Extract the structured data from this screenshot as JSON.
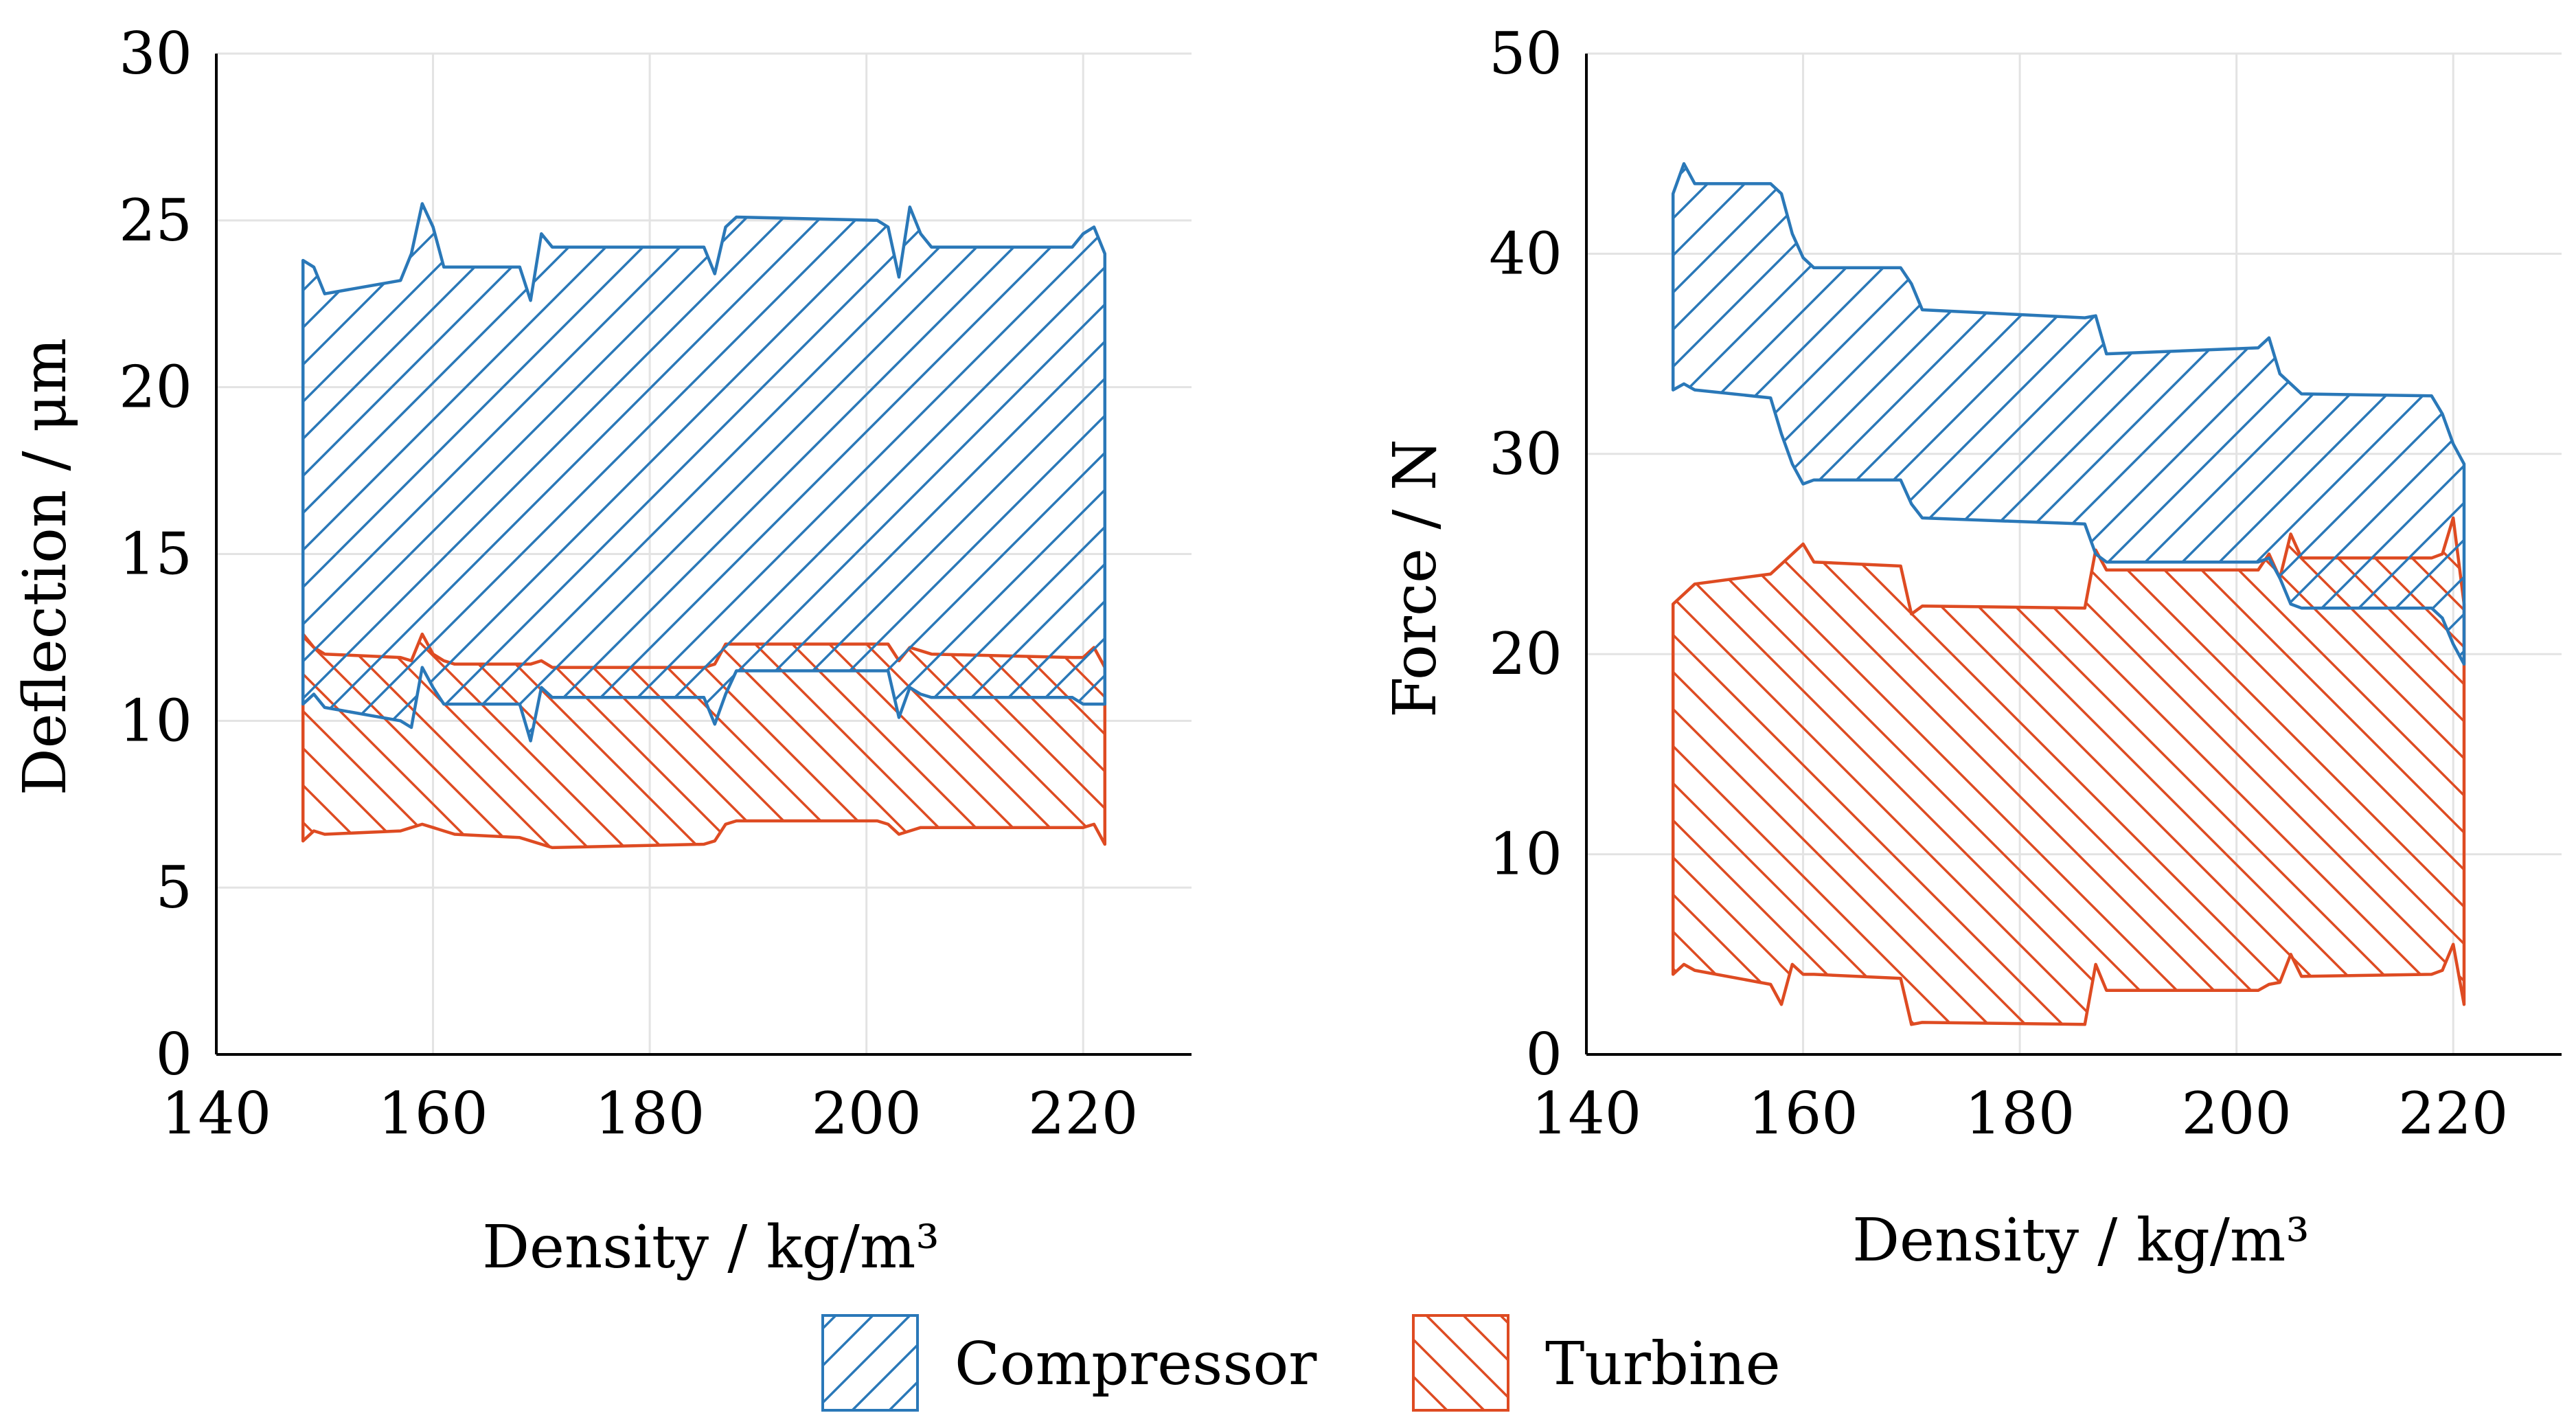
{
  "colors": {
    "compressor": "#2a78b8",
    "turbine": "#de4b22",
    "grid": "#e3e3e3"
  },
  "legend": {
    "compressor": "Compressor",
    "turbine": "Turbine"
  },
  "chart_data": [
    {
      "type": "area",
      "subplot": "left",
      "xlabel": "Density / kg/m³",
      "ylabel": "Deflection /   μm",
      "xlim": [
        140,
        230
      ],
      "ylim": [
        0,
        30
      ],
      "xticks": [
        "140",
        "160",
        "180",
        "200",
        "220"
      ],
      "yticks": [
        "0",
        "5",
        "10",
        "15",
        "20",
        "25",
        "30"
      ],
      "grid": true,
      "series": [
        {
          "name": "Compressor",
          "hatch": "diagonal-up",
          "x": [
            148,
            149,
            150,
            157,
            158,
            159,
            160,
            161,
            162,
            168,
            169,
            170,
            171,
            185,
            186,
            187,
            188,
            201,
            202,
            203,
            204,
            205,
            206,
            219,
            220,
            221,
            222
          ],
          "upper": [
            23.8,
            23.6,
            22.8,
            23.2,
            24.0,
            25.5,
            24.8,
            23.6,
            23.6,
            23.6,
            22.6,
            24.6,
            24.2,
            24.2,
            23.4,
            24.8,
            25.1,
            25.0,
            24.8,
            23.3,
            25.4,
            24.6,
            24.2,
            24.2,
            24.6,
            24.8,
            24.0
          ],
          "lower": [
            10.5,
            10.8,
            10.4,
            10.0,
            9.8,
            11.6,
            11.0,
            10.5,
            10.5,
            10.5,
            9.4,
            11.0,
            10.7,
            10.7,
            9.9,
            10.8,
            11.5,
            11.5,
            11.5,
            10.1,
            11.0,
            10.8,
            10.7,
            10.7,
            10.5,
            10.5,
            10.5
          ]
        },
        {
          "name": "Turbine",
          "hatch": "diagonal-down",
          "x": [
            148,
            149,
            150,
            157,
            158,
            159,
            160,
            161,
            162,
            168,
            169,
            170,
            171,
            185,
            186,
            187,
            188,
            201,
            202,
            203,
            204,
            205,
            206,
            219,
            220,
            221,
            222
          ],
          "upper": [
            12.6,
            12.2,
            12.0,
            11.9,
            11.8,
            12.6,
            12.0,
            11.8,
            11.7,
            11.7,
            11.7,
            11.8,
            11.6,
            11.6,
            11.7,
            12.3,
            12.3,
            12.3,
            12.3,
            11.8,
            12.2,
            12.1,
            12.0,
            11.9,
            11.9,
            12.2,
            11.6
          ],
          "lower": [
            6.4,
            6.7,
            6.6,
            6.7,
            6.8,
            6.9,
            6.8,
            6.7,
            6.6,
            6.5,
            6.4,
            6.3,
            6.2,
            6.3,
            6.4,
            6.9,
            7.0,
            7.0,
            6.9,
            6.6,
            6.7,
            6.8,
            6.8,
            6.8,
            6.8,
            6.9,
            6.3
          ]
        }
      ]
    },
    {
      "type": "area",
      "subplot": "right",
      "xlabel": "Density / kg/m³",
      "ylabel": "Force / N",
      "xlim": [
        140,
        230
      ],
      "ylim": [
        0,
        50
      ],
      "xticks": [
        "140",
        "160",
        "180",
        "200",
        "220"
      ],
      "yticks": [
        "0",
        "10",
        "20",
        "30",
        "40",
        "50"
      ],
      "grid": true,
      "series": [
        {
          "name": "Compressor",
          "hatch": "diagonal-up",
          "x": [
            148,
            149,
            150,
            157,
            158,
            159,
            160,
            161,
            169,
            170,
            171,
            186,
            187,
            188,
            202,
            203,
            204,
            205,
            206,
            218,
            219,
            220,
            221
          ],
          "upper": [
            43.0,
            44.5,
            43.5,
            43.5,
            43.0,
            41.0,
            39.8,
            39.3,
            39.3,
            38.5,
            37.2,
            36.8,
            36.9,
            35.0,
            35.3,
            35.8,
            34.0,
            33.5,
            33.0,
            32.9,
            32.0,
            30.5,
            29.5
          ],
          "lower": [
            33.2,
            33.5,
            33.2,
            32.8,
            31.0,
            29.5,
            28.5,
            28.7,
            28.7,
            27.5,
            26.8,
            26.5,
            25.0,
            24.6,
            24.6,
            24.8,
            23.8,
            22.5,
            22.3,
            22.3,
            21.8,
            20.5,
            19.5
          ]
        },
        {
          "name": "Turbine",
          "hatch": "diagonal-down",
          "x": [
            148,
            149,
            150,
            157,
            158,
            159,
            160,
            161,
            169,
            170,
            171,
            186,
            187,
            188,
            202,
            203,
            204,
            205,
            206,
            218,
            219,
            220,
            221
          ],
          "upper": [
            22.5,
            23.0,
            23.5,
            24.0,
            24.5,
            25.0,
            25.5,
            24.6,
            24.4,
            22.0,
            22.4,
            22.3,
            25.2,
            24.2,
            24.2,
            25.0,
            23.8,
            26.0,
            24.8,
            24.8,
            25.0,
            26.8,
            22.5
          ],
          "lower": [
            4.0,
            4.5,
            4.2,
            3.5,
            2.5,
            4.5,
            4.0,
            4.0,
            3.8,
            1.5,
            1.6,
            1.5,
            4.5,
            3.2,
            3.2,
            3.5,
            3.6,
            5.0,
            3.9,
            4.0,
            4.2,
            5.5,
            2.5
          ]
        }
      ]
    }
  ]
}
